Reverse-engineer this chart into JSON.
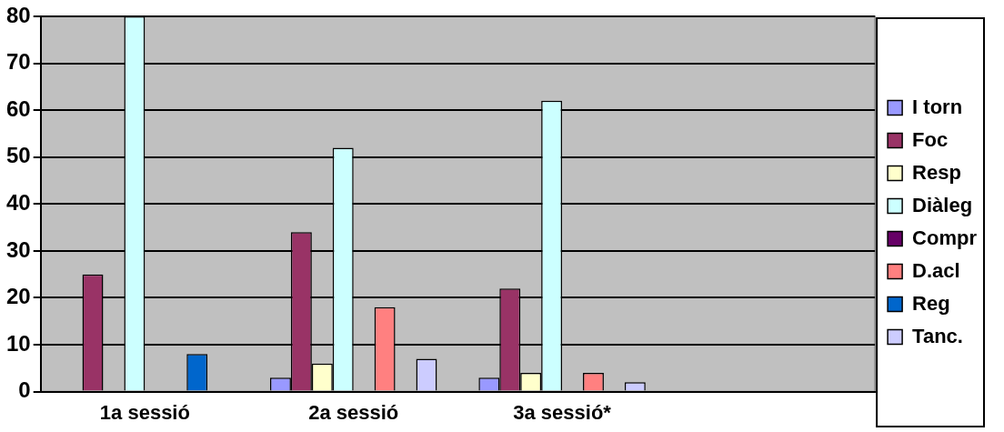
{
  "chart_data": {
    "type": "bar",
    "categories": [
      "1a sessió",
      "2a sessió",
      "3a sessió*",
      null
    ],
    "series": [
      {
        "name": "I torn",
        "color": "#9999ff",
        "values": [
          0,
          3,
          3,
          null
        ]
      },
      {
        "name": "Foc",
        "color": "#993366",
        "values": [
          25,
          34,
          22,
          null
        ]
      },
      {
        "name": "Resp",
        "color": "#ffffcc",
        "values": [
          0,
          6,
          4,
          null
        ]
      },
      {
        "name": "Diàleg",
        "color": "#ccffff",
        "values": [
          80,
          52,
          62,
          null
        ]
      },
      {
        "name": "Compr",
        "color": "#660066",
        "values": [
          0,
          0,
          0,
          null
        ]
      },
      {
        "name": "D.acl",
        "color": "#ff8080",
        "values": [
          0,
          18,
          4,
          null
        ]
      },
      {
        "name": "Reg",
        "color": "#0066cc",
        "values": [
          8,
          0,
          0,
          null
        ]
      },
      {
        "name": "Tanc.",
        "color": "#ccccff",
        "values": [
          0,
          7,
          2,
          null
        ]
      }
    ],
    "ylim": [
      0,
      80
    ],
    "yticks": [
      0,
      10,
      20,
      30,
      40,
      50,
      60,
      70,
      80
    ],
    "grid": "y",
    "legend": "right"
  }
}
